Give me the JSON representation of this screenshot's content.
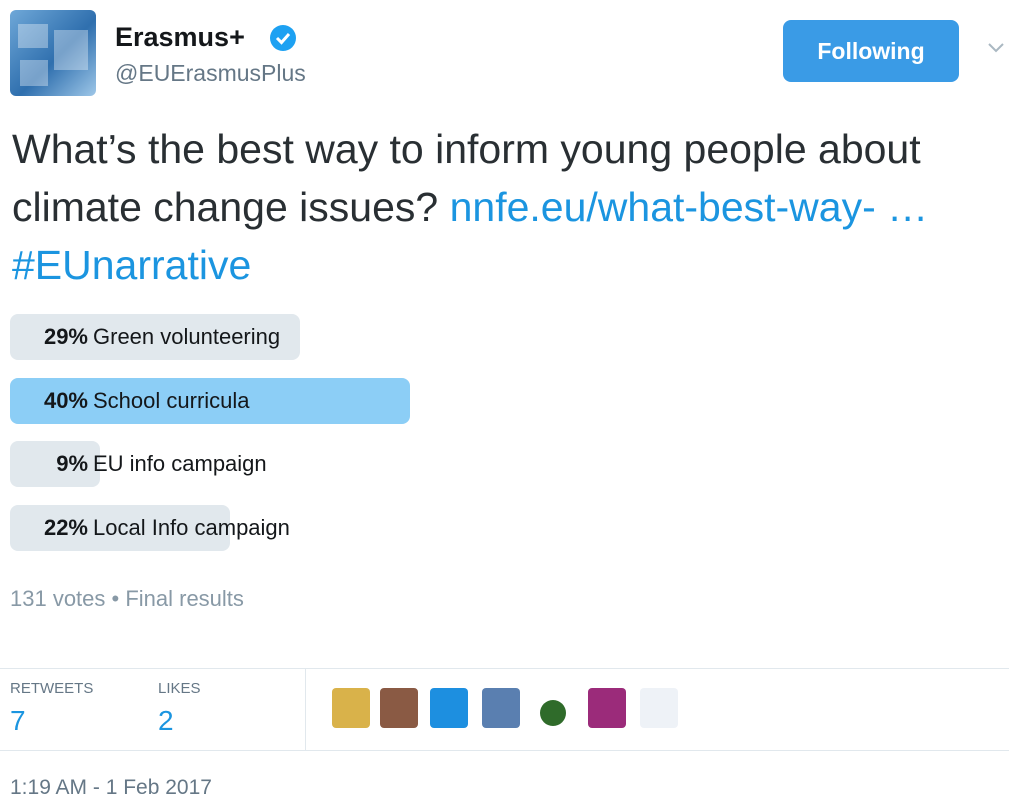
{
  "header": {
    "name": "Erasmus+",
    "handle": "@EUErasmusPlus",
    "button": "Following"
  },
  "tweet": {
    "text": "What’s the best way to inform young people about climate change issues?",
    "link": "nnfe.eu/what-best-way-",
    "ellipsis": "…",
    "hashtag": "#EUnarrative"
  },
  "poll": {
    "options": [
      {
        "value": 29,
        "label": "29%",
        "text": "Green volunteering"
      },
      {
        "value": 40,
        "label": "40%",
        "text": "School curricula"
      },
      {
        "value": 9,
        "label": "9%",
        "text": "EU info campaign"
      },
      {
        "value": 22,
        "label": "22%",
        "text": "Local Info campaign"
      }
    ],
    "summary": "131 votes • Final results"
  },
  "stats": {
    "retweets_label": "RETWEETS",
    "retweets": 7,
    "likes_label": "LIKES",
    "likes": 2
  },
  "timestamp": "1:19 AM - 1 Feb 2017"
}
